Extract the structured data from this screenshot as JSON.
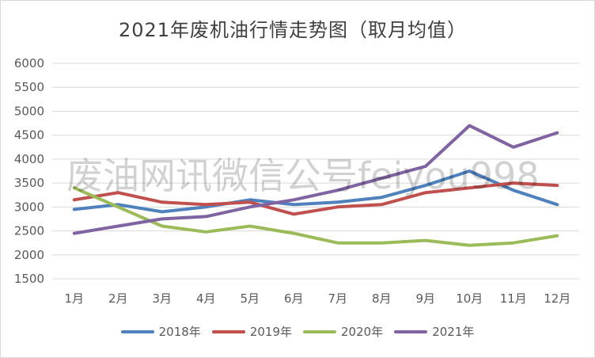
{
  "chart_data": {
    "type": "line",
    "title": "2021年废机油行情走势图（取月均值）",
    "categories": [
      "1月",
      "2月",
      "3月",
      "4月",
      "5月",
      "6月",
      "7月",
      "8月",
      "9月",
      "10月",
      "11月",
      "12月"
    ],
    "ylim": [
      1500,
      6000
    ],
    "yticks": [
      1500,
      2000,
      2500,
      3000,
      3500,
      4000,
      4500,
      5000,
      5500,
      6000
    ],
    "grid": true,
    "legend_position": "bottom",
    "series": [
      {
        "name": "2018年",
        "color": "#4f81bd",
        "values": [
          2950,
          3050,
          2900,
          3000,
          3150,
          3050,
          3100,
          3200,
          3450,
          3750,
          3350,
          3050
        ]
      },
      {
        "name": "2019年",
        "color": "#c0504d",
        "values": [
          3150,
          3300,
          3100,
          3050,
          3100,
          2850,
          3000,
          3050,
          3300,
          3400,
          3500,
          3450
        ]
      },
      {
        "name": "2020年",
        "color": "#9bbb59",
        "values": [
          3400,
          3000,
          2600,
          2480,
          2600,
          2450,
          2250,
          2250,
          2300,
          2200,
          2250,
          2400
        ]
      },
      {
        "name": "2021年",
        "color": "#8064a2",
        "values": [
          2450,
          2600,
          2750,
          2800,
          3000,
          3150,
          3350,
          3600,
          3850,
          4700,
          4250,
          4550
        ]
      }
    ]
  },
  "watermark": "废油网讯微信公号feiyou998"
}
